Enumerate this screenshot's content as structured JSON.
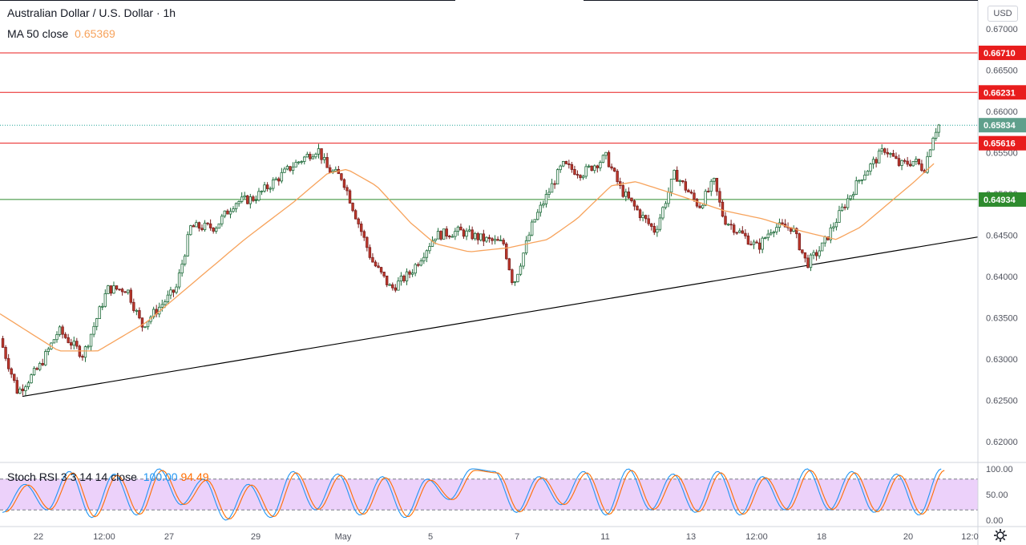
{
  "header": {
    "symbol_title": "Australian Dollar / U.S. Dollar · 1h",
    "ma_label": "MA 50 close",
    "ma_value": "0.65369",
    "currency": "USD"
  },
  "oscillator": {
    "label": "Stoch RSI 3 3 14 14 close",
    "k_value": "100.00",
    "d_value": "94.49",
    "levels": [
      100.0,
      80,
      20,
      0.0
    ],
    "tick_labels": [
      "100.00",
      "50.00",
      "0.00"
    ]
  },
  "price_axis": {
    "min": 0.6175,
    "max": 0.6735,
    "tick_labels": [
      "0.67000",
      "0.66500",
      "0.66000",
      "0.65500",
      "0.65000",
      "0.64500",
      "0.64000",
      "0.63500",
      "0.63000",
      "0.62500",
      "0.62000"
    ]
  },
  "time_axis": {
    "tick_labels": [
      "22",
      "12:00",
      "27",
      "29",
      "May",
      "5",
      "7",
      "11",
      "13",
      "12:00",
      "18",
      "20",
      "12:0"
    ]
  },
  "colors": {
    "up": "#26a69a",
    "down": "#ef5350",
    "candle_body_up": "#ffffff",
    "candle_body_down": "#ef5350",
    "ma": "#f7a35c",
    "red_line": "#e81d1d",
    "green_line": "#2e8b2e",
    "trend_line": "#000000",
    "stoch_k": "#2196f3",
    "stoch_d": "#ff6d00",
    "stoch_band": "#e9c9f9"
  },
  "chart_data": {
    "type": "candlestick",
    "title": "Australian Dollar / U.S. Dollar · 1h",
    "ylim": [
      0.6175,
      0.6735
    ],
    "horizontal_levels": [
      {
        "label": "0.66710",
        "value": 0.6671,
        "color": "red"
      },
      {
        "label": "0.66231",
        "value": 0.66231,
        "color": "red"
      },
      {
        "label": "0.65616",
        "value": 0.65616,
        "color": "red"
      },
      {
        "label": "0.64934",
        "value": 0.64934,
        "color": "green"
      }
    ],
    "last_price": {
      "label": "0.65834",
      "value": 0.65834
    },
    "trend_line": {
      "from": {
        "time": "Apr 21",
        "price": 0.6255
      },
      "to": {
        "time": "May 20 end",
        "price": 0.6448
      }
    },
    "price_path": [
      {
        "t": 0.0,
        "p": 0.6325
      },
      {
        "t": 0.018,
        "p": 0.626
      },
      {
        "t": 0.04,
        "p": 0.629
      },
      {
        "t": 0.06,
        "p": 0.6335
      },
      {
        "t": 0.085,
        "p": 0.6305
      },
      {
        "t": 0.11,
        "p": 0.6385
      },
      {
        "t": 0.13,
        "p": 0.6385
      },
      {
        "t": 0.145,
        "p": 0.634
      },
      {
        "t": 0.18,
        "p": 0.6385
      },
      {
        "t": 0.195,
        "p": 0.646
      },
      {
        "t": 0.22,
        "p": 0.646
      },
      {
        "t": 0.24,
        "p": 0.649
      },
      {
        "t": 0.26,
        "p": 0.6495
      },
      {
        "t": 0.3,
        "p": 0.6535
      },
      {
        "t": 0.325,
        "p": 0.6555
      },
      {
        "t": 0.335,
        "p": 0.653
      },
      {
        "t": 0.35,
        "p": 0.652
      },
      {
        "t": 0.38,
        "p": 0.642
      },
      {
        "t": 0.4,
        "p": 0.6385
      },
      {
        "t": 0.42,
        "p": 0.6405
      },
      {
        "t": 0.445,
        "p": 0.645
      },
      {
        "t": 0.47,
        "p": 0.6455
      },
      {
        "t": 0.495,
        "p": 0.6445
      },
      {
        "t": 0.515,
        "p": 0.644
      },
      {
        "t": 0.525,
        "p": 0.639
      },
      {
        "t": 0.545,
        "p": 0.6465
      },
      {
        "t": 0.575,
        "p": 0.6535
      },
      {
        "t": 0.595,
        "p": 0.6525
      },
      {
        "t": 0.62,
        "p": 0.6545
      },
      {
        "t": 0.635,
        "p": 0.6505
      },
      {
        "t": 0.655,
        "p": 0.6475
      },
      {
        "t": 0.67,
        "p": 0.6455
      },
      {
        "t": 0.69,
        "p": 0.6525
      },
      {
        "t": 0.715,
        "p": 0.6485
      },
      {
        "t": 0.73,
        "p": 0.6515
      },
      {
        "t": 0.74,
        "p": 0.647
      },
      {
        "t": 0.76,
        "p": 0.645
      },
      {
        "t": 0.775,
        "p": 0.6435
      },
      {
        "t": 0.79,
        "p": 0.646
      },
      {
        "t": 0.81,
        "p": 0.646
      },
      {
        "t": 0.825,
        "p": 0.6415
      },
      {
        "t": 0.84,
        "p": 0.6435
      },
      {
        "t": 0.865,
        "p": 0.649
      },
      {
        "t": 0.88,
        "p": 0.652
      },
      {
        "t": 0.905,
        "p": 0.6555
      },
      {
        "t": 0.92,
        "p": 0.6535
      },
      {
        "t": 0.935,
        "p": 0.654
      },
      {
        "t": 0.945,
        "p": 0.653
      },
      {
        "t": 0.955,
        "p": 0.6575
      },
      {
        "t": 0.96,
        "p": 0.65834
      }
    ],
    "ma50_path": [
      {
        "t": 0.0,
        "p": 0.6355
      },
      {
        "t": 0.06,
        "p": 0.631
      },
      {
        "t": 0.1,
        "p": 0.631
      },
      {
        "t": 0.15,
        "p": 0.6345
      },
      {
        "t": 0.2,
        "p": 0.6395
      },
      {
        "t": 0.25,
        "p": 0.6445
      },
      {
        "t": 0.3,
        "p": 0.649
      },
      {
        "t": 0.335,
        "p": 0.6525
      },
      {
        "t": 0.355,
        "p": 0.653
      },
      {
        "t": 0.385,
        "p": 0.651
      },
      {
        "t": 0.42,
        "p": 0.6465
      },
      {
        "t": 0.445,
        "p": 0.644
      },
      {
        "t": 0.48,
        "p": 0.643
      },
      {
        "t": 0.52,
        "p": 0.6435
      },
      {
        "t": 0.56,
        "p": 0.6445
      },
      {
        "t": 0.59,
        "p": 0.647
      },
      {
        "t": 0.625,
        "p": 0.651
      },
      {
        "t": 0.65,
        "p": 0.6515
      },
      {
        "t": 0.69,
        "p": 0.65
      },
      {
        "t": 0.74,
        "p": 0.648
      },
      {
        "t": 0.78,
        "p": 0.647
      },
      {
        "t": 0.82,
        "p": 0.6455
      },
      {
        "t": 0.855,
        "p": 0.6445
      },
      {
        "t": 0.88,
        "p": 0.646
      },
      {
        "t": 0.91,
        "p": 0.649
      },
      {
        "t": 0.935,
        "p": 0.6515
      },
      {
        "t": 0.955,
        "p": 0.65369
      }
    ],
    "stoch_k_peaks": [
      15,
      70,
      20,
      95,
      5,
      90,
      10,
      100,
      30,
      80,
      0,
      70,
      5,
      95,
      20,
      90,
      10,
      85,
      5,
      80,
      40,
      100,
      95,
      15,
      85,
      30,
      95,
      10,
      100,
      20,
      90,
      15,
      95,
      10,
      85,
      20,
      100,
      20,
      95,
      15,
      90,
      10,
      100
    ],
    "stoch_x_values": [],
    "x_tick_labels": [
      "22",
      "12:00",
      "27",
      "29",
      "May",
      "5",
      "7",
      "11",
      "13",
      "12:00",
      "18",
      "20",
      "12:0"
    ],
    "y_tick_labels": [
      "0.67000",
      "0.66500",
      "0.66000",
      "0.65500",
      "0.65000",
      "0.64500",
      "0.64000",
      "0.63500",
      "0.63000",
      "0.62500",
      "0.62000"
    ]
  }
}
